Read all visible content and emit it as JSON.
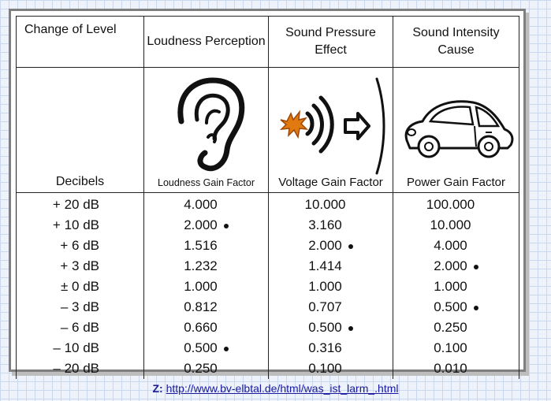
{
  "headers": {
    "col1": "Change of Level",
    "col2": "Loudness Perception",
    "col3": "Sound Pressure Effect",
    "col4": "Sound Intensity Cause"
  },
  "subheaders": {
    "col1": "Decibels",
    "col2": "Loudness Gain Factor",
    "col3": "Voltage Gain Factor",
    "col4": "Power Gain Factor"
  },
  "icons": {
    "col2": "ear-icon",
    "col3": "sound-wave-icon",
    "col4": "car-icon"
  },
  "rows": [
    {
      "db": "+ 20 dB",
      "loudness": "4.000",
      "voltage": "10.000",
      "power": "100.000",
      "dots": [
        false,
        false,
        false
      ]
    },
    {
      "db": "+ 10 dB",
      "loudness": "2.000",
      "voltage": "3.160",
      "power": "10.000",
      "dots": [
        true,
        false,
        false
      ]
    },
    {
      "db": "+ 6 dB",
      "loudness": "1.516",
      "voltage": "2.000",
      "power": "4.000",
      "dots": [
        false,
        true,
        false
      ]
    },
    {
      "db": "+ 3 dB",
      "loudness": "1.232",
      "voltage": "1.414",
      "power": "2.000",
      "dots": [
        false,
        false,
        true
      ]
    },
    {
      "db": "± 0 dB",
      "loudness": "1.000",
      "voltage": "1.000",
      "power": "1.000",
      "dots": [
        false,
        false,
        false
      ]
    },
    {
      "db": "– 3 dB",
      "loudness": "0.812",
      "voltage": "0.707",
      "power": "0.500",
      "dots": [
        false,
        false,
        true
      ]
    },
    {
      "db": "– 6 dB",
      "loudness": "0.660",
      "voltage": "0.500",
      "power": "0.250",
      "dots": [
        false,
        true,
        false
      ]
    },
    {
      "db": "– 10 dB",
      "loudness": "0.500",
      "voltage": "0.316",
      "power": "0.100",
      "dots": [
        true,
        false,
        false
      ]
    },
    {
      "db": "– 20 dB",
      "loudness": "0.250",
      "voltage": "0.100",
      "power": "0.010",
      "dots": [
        false,
        false,
        false
      ]
    }
  ],
  "source": {
    "prefix": "Z:",
    "url": "http://www.bv-elbtal.de/html/was_ist_larm_.html"
  }
}
